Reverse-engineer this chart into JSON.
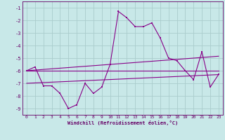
{
  "xlabel": "Windchill (Refroidissement éolien,°C)",
  "x": [
    0,
    1,
    2,
    3,
    4,
    5,
    6,
    7,
    8,
    9,
    10,
    11,
    12,
    13,
    14,
    15,
    16,
    17,
    18,
    19,
    20,
    21,
    22,
    23
  ],
  "line1": [
    -6.0,
    -5.7,
    -7.2,
    -7.2,
    -7.8,
    -9.0,
    -8.7,
    -7.0,
    -7.8,
    -7.3,
    -5.5,
    -1.3,
    -1.8,
    -2.5,
    -2.5,
    -2.2,
    -3.4,
    -5.0,
    -5.2,
    -6.0,
    -6.7,
    -4.5,
    -7.3,
    -6.3
  ],
  "line2": [
    -6.0,
    -6.0,
    -6.0,
    -6.0,
    -6.0,
    -6.0,
    -6.0,
    -6.0,
    -6.0,
    -6.0,
    -6.0,
    -6.0,
    -6.0,
    -6.0,
    -6.0,
    -6.0,
    -6.0,
    -6.0,
    -6.0,
    -6.0,
    -6.0,
    -6.0,
    -6.0,
    -6.0
  ],
  "line3": [
    -6.0,
    -5.95,
    -5.9,
    -5.85,
    -5.8,
    -5.75,
    -5.7,
    -5.65,
    -5.6,
    -5.55,
    -5.5,
    -5.45,
    -5.4,
    -5.35,
    -5.3,
    -5.25,
    -5.2,
    -5.15,
    -5.1,
    -5.05,
    -5.0,
    -4.95,
    -4.9,
    -4.85
  ],
  "line4": [
    -7.0,
    -6.97,
    -6.94,
    -6.91,
    -6.88,
    -6.85,
    -6.82,
    -6.79,
    -6.76,
    -6.73,
    -6.7,
    -6.67,
    -6.64,
    -6.61,
    -6.58,
    -6.55,
    -6.52,
    -6.49,
    -6.46,
    -6.43,
    -6.4,
    -6.37,
    -6.34,
    -6.31
  ],
  "line_color": "#880088",
  "bg_color": "#c8e8e8",
  "grid_color": "#aacccc",
  "tick_color": "#660066",
  "ylim": [
    -9.5,
    -0.5
  ],
  "xlim": [
    -0.5,
    23.5
  ],
  "yticks": [
    -1,
    -2,
    -3,
    -4,
    -5,
    -6,
    -7,
    -8,
    -9
  ],
  "xticks": [
    0,
    1,
    2,
    3,
    4,
    5,
    6,
    7,
    8,
    9,
    10,
    11,
    12,
    13,
    14,
    15,
    16,
    17,
    18,
    19,
    20,
    21,
    22,
    23
  ]
}
